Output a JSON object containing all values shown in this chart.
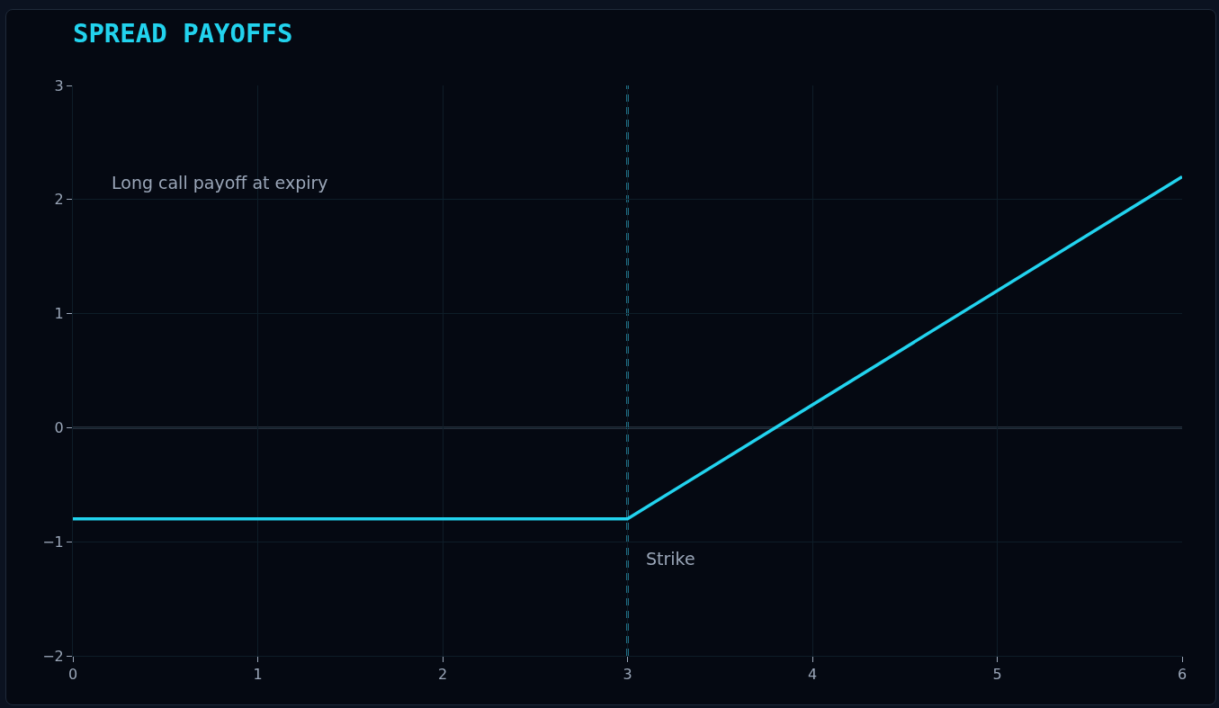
{
  "chart_data": {
    "type": "line",
    "title": "SPREAD PAYOFFS",
    "x": [
      0,
      3,
      6
    ],
    "series": [
      {
        "color": "#22d3ee",
        "values": [
          -0.8,
          -0.8,
          2.2
        ]
      }
    ],
    "xlim": [
      0,
      6
    ],
    "xticks": [
      0,
      1,
      2,
      3,
      4,
      5,
      6
    ],
    "ylim": [
      -2,
      3
    ],
    "yticks": [
      {
        "value": -2,
        "label": "−2"
      },
      {
        "value": -1,
        "label": "−1"
      },
      0,
      1,
      2,
      3
    ],
    "grid": true,
    "marker": "none",
    "line_style": "solid",
    "ref_lines": [
      {
        "axis": "y",
        "value": 0,
        "color": "#4b5563",
        "line_style": "solid"
      },
      {
        "axis": "x",
        "value": 3,
        "label": "Strike",
        "color": "#1e6b80",
        "line_style": "dashed"
      }
    ],
    "annotations": [
      "Long call payoff at expiry"
    ]
  }
}
